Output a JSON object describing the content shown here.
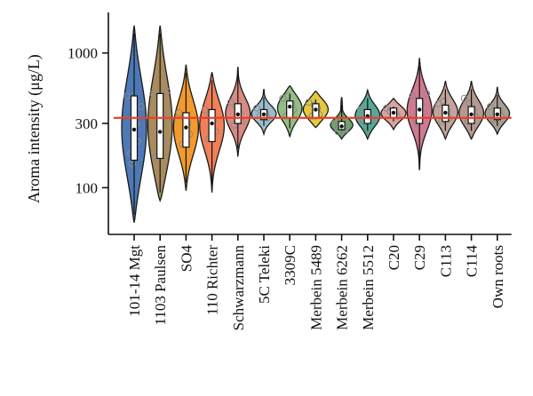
{
  "chart_data": {
    "type": "violin",
    "ylabel": "Aroma intensity (μg/L)",
    "xlabel": "",
    "y_scale": "log",
    "ylim": [
      45,
      2000
    ],
    "y_ticks": [
      100,
      300,
      1000
    ],
    "y_tick_labels": [
      "100",
      "300",
      "1000"
    ],
    "reference_line": {
      "value": 330,
      "color": "#e8402a"
    },
    "categories": [
      "101-14 Mgt",
      "1103 Paulsen",
      "SO4",
      "110 Richter",
      "Schwarzmann",
      "5C Teleki",
      "3309C",
      "Merbein 5489",
      "Merbein 6262",
      "Merbein 5512",
      "C20",
      "C29",
      "C113",
      "C114",
      "Own roots"
    ],
    "violins": [
      {
        "name": "101-14 Mgt",
        "color": "#4e79b5",
        "min": 55,
        "max": 1600,
        "q1": 160,
        "median": 270,
        "q3": 480,
        "points": [
          480,
          300,
          220,
          180,
          150,
          400
        ]
      },
      {
        "name": "1103 Paulsen",
        "color": "#a88c5e",
        "min": 80,
        "max": 1600,
        "q1": 165,
        "median": 260,
        "q3": 500,
        "points": [
          500,
          310,
          230,
          170,
          420,
          520
        ]
      },
      {
        "name": "SO4",
        "color": "#f39a2e",
        "min": 95,
        "max": 820,
        "q1": 200,
        "median": 280,
        "q3": 360,
        "points": [
          360,
          300,
          250,
          210,
          330
        ]
      },
      {
        "name": "110 Richter",
        "color": "#f0805a",
        "min": 92,
        "max": 720,
        "q1": 220,
        "median": 300,
        "q3": 380,
        "points": [
          380,
          320,
          260,
          230,
          350
        ]
      },
      {
        "name": "Schwarzmann",
        "color": "#d98a82",
        "min": 170,
        "max": 790,
        "q1": 300,
        "median": 350,
        "q3": 420,
        "points": [
          430,
          360,
          310,
          290,
          400
        ]
      },
      {
        "name": "5C Teleki",
        "color": "#9bbccc",
        "min": 250,
        "max": 540,
        "q1": 320,
        "median": 350,
        "q3": 380,
        "points": [
          390,
          360,
          330,
          345
        ]
      },
      {
        "name": "3309C",
        "color": "#93bd86",
        "min": 240,
        "max": 570,
        "q1": 330,
        "median": 400,
        "q3": 440,
        "points": [
          460,
          420,
          380,
          340,
          480
        ]
      },
      {
        "name": "Merbein 5489",
        "color": "#e3c93d",
        "min": 280,
        "max": 520,
        "q1": 330,
        "median": 380,
        "q3": 420,
        "points": [
          430,
          390,
          350,
          340,
          410
        ]
      },
      {
        "name": "Merbein 6262",
        "color": "#6ea46a",
        "min": 230,
        "max": 470,
        "q1": 270,
        "median": 285,
        "q3": 310,
        "points": [
          300,
          280,
          270,
          260,
          290
        ]
      },
      {
        "name": "Merbein 5512",
        "color": "#57a896",
        "min": 230,
        "max": 530,
        "q1": 300,
        "median": 340,
        "q3": 380,
        "points": [
          380,
          350,
          320,
          310,
          360
        ]
      },
      {
        "name": "C20",
        "color": "#d9a3a0",
        "min": 270,
        "max": 460,
        "q1": 330,
        "median": 360,
        "q3": 390,
        "points": [
          390,
          360,
          340,
          370
        ]
      },
      {
        "name": "C29",
        "color": "#cf7a8f",
        "min": 135,
        "max": 920,
        "q1": 300,
        "median": 380,
        "q3": 460,
        "points": [
          480,
          420,
          360,
          320,
          300,
          500
        ]
      },
      {
        "name": "C113",
        "color": "#c4a49a",
        "min": 230,
        "max": 620,
        "q1": 310,
        "median": 360,
        "q3": 410,
        "points": [
          420,
          370,
          330,
          310,
          440
        ]
      },
      {
        "name": "C114",
        "color": "#b59890",
        "min": 230,
        "max": 620,
        "q1": 300,
        "median": 350,
        "q3": 400,
        "points": [
          460,
          380,
          340,
          310,
          420
        ]
      },
      {
        "name": "Own roots",
        "color": "#a99e93",
        "min": 250,
        "max": 560,
        "q1": 320,
        "median": 350,
        "q3": 390,
        "points": [
          400,
          370,
          340,
          320,
          360
        ]
      }
    ]
  }
}
